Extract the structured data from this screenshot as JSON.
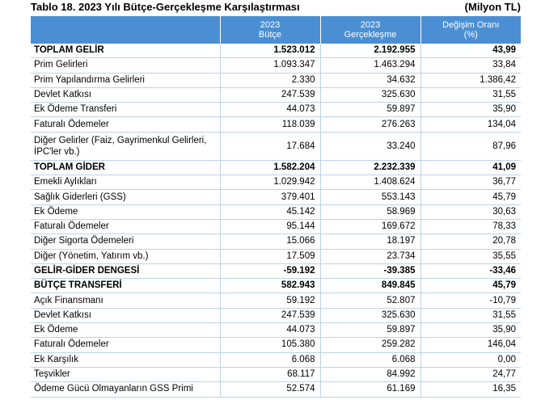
{
  "caption": {
    "title": "Tablo 18. 2023 Yılı Bütçe-Gerçekleşme Karşılaştırması",
    "unit": "(Milyon TL)"
  },
  "header": {
    "col2_line1": "2023",
    "col2_line2": "Bütçe",
    "col3_line1": "2023",
    "col3_line2": "Gerçekleşme",
    "col4_line1": "Değişim Oranı",
    "col4_line2": "(%)"
  },
  "rows": [
    {
      "label": "TOPLAM GELİR",
      "budget": "1.523.012",
      "actual": "2.192.955",
      "change": "43,99",
      "bold": true
    },
    {
      "label": "Prim Gelirleri",
      "budget": "1.093.347",
      "actual": "1.463.294",
      "change": "33,84",
      "bold": false
    },
    {
      "label": "Prim Yapılandırma Gelirleri",
      "budget": "2.330",
      "actual": "34.632",
      "change": "1.386,42",
      "bold": false
    },
    {
      "label": "Devlet Katkısı",
      "budget": "247.539",
      "actual": "325.630",
      "change": "31,55",
      "bold": false
    },
    {
      "label": "Ek Ödeme Transferi",
      "budget": "44.073",
      "actual": "59.897",
      "change": "35,90",
      "bold": false
    },
    {
      "label": "Faturalı Ödemeler",
      "budget": "118.039",
      "actual": "276.263",
      "change": "134,04",
      "bold": false
    },
    {
      "label": "Diğer Gelirler (Faiz, Gayrimenkul Gelirleri, İPC'ler vb.)",
      "budget": "17.684",
      "actual": "33.240",
      "change": "87,96",
      "bold": false,
      "tall": true
    },
    {
      "label": "TOPLAM GİDER",
      "budget": "1.582.204",
      "actual": "2.232.339",
      "change": "41,09",
      "bold": true
    },
    {
      "label": "Emekli Aylıkları",
      "budget": "1.029.942",
      "actual": "1.408.624",
      "change": "36,77",
      "bold": false
    },
    {
      "label": "Sağlık Giderleri (GSS)",
      "budget": "379.401",
      "actual": "553.143",
      "change": "45,79",
      "bold": false
    },
    {
      "label": "Ek Ödeme",
      "budget": "45.142",
      "actual": "58.969",
      "change": "30,63",
      "bold": false
    },
    {
      "label": "Faturalı Ödemeler",
      "budget": "95.144",
      "actual": "169.672",
      "change": "78,33",
      "bold": false
    },
    {
      "label": "Diğer Sigorta Ödemeleri",
      "budget": "15.066",
      "actual": "18.197",
      "change": "20,78",
      "bold": false
    },
    {
      "label": "Diğer (Yönetim, Yatırım vb.)",
      "budget": "17.509",
      "actual": "23.734",
      "change": "35,55",
      "bold": false
    },
    {
      "label": "GELİR-GİDER DENGESİ",
      "budget": "-59.192",
      "actual": "-39.385",
      "change": "-33,46",
      "bold": true
    },
    {
      "label": "BÜTÇE TRANSFERİ",
      "budget": "582.943",
      "actual": "849.845",
      "change": "45,79",
      "bold": true
    },
    {
      "label": "Açık Finansmanı",
      "budget": "59.192",
      "actual": "52.807",
      "change": "-10,79",
      "bold": false
    },
    {
      "label": "Devlet Katkısı",
      "budget": "247.539",
      "actual": "325.630",
      "change": "31,55",
      "bold": false
    },
    {
      "label": "Ek Ödeme",
      "budget": "44.073",
      "actual": "59.897",
      "change": "35,90",
      "bold": false
    },
    {
      "label": "Faturalı Ödemeler",
      "budget": "105.380",
      "actual": "259.282",
      "change": "146,04",
      "bold": false
    },
    {
      "label": "Ek Karşılık",
      "budget": "6.068",
      "actual": "6.068",
      "change": "0,00",
      "bold": false
    },
    {
      "label": "Teşvikler",
      "budget": "68.117",
      "actual": "84.992",
      "change": "24,77",
      "bold": false
    },
    {
      "label": "Ödeme Gücü Olmayanların GSS Primi",
      "budget": "52.574",
      "actual": "61.169",
      "change": "16,35",
      "bold": false
    }
  ]
}
